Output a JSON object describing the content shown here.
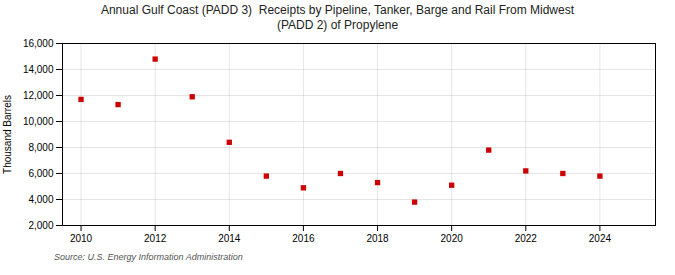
{
  "chart_data": {
    "type": "scatter",
    "title": "Annual Gulf Coast (PADD 3)  Receipts by Pipeline, Tanker, Barge and Rail From Midwest\n(PADD 2) of Propylene",
    "ylabel": "Thousand Barrels",
    "source": "Source: U.S. Energy Information Administration",
    "x": [
      2010,
      2011,
      2012,
      2013,
      2014,
      2015,
      2016,
      2017,
      2018,
      2019,
      2020,
      2021,
      2022,
      2023,
      2024
    ],
    "values": [
      11700,
      11300,
      14800,
      11900,
      8400,
      5800,
      4900,
      6000,
      5300,
      3800,
      5100,
      7800,
      6200,
      6000,
      5800
    ],
    "color": "#cc0000",
    "marker": "square",
    "xlim": [
      2009.5,
      2025.5
    ],
    "xticks": [
      2010,
      2012,
      2014,
      2016,
      2018,
      2020,
      2022,
      2024
    ],
    "ylim": [
      2000,
      16000
    ],
    "yticks": [
      {
        "value": 2000,
        "label": "2,000"
      },
      {
        "value": 4000,
        "label": "4,000"
      },
      {
        "value": 6000,
        "label": "6,000"
      },
      {
        "value": 8000,
        "label": "8,000"
      },
      {
        "value": 10000,
        "label": "10,000"
      },
      {
        "value": 12000,
        "label": "12,000"
      },
      {
        "value": 14000,
        "label": "14,000"
      },
      {
        "value": 16000,
        "label": "16,000"
      }
    ],
    "grid": true
  }
}
